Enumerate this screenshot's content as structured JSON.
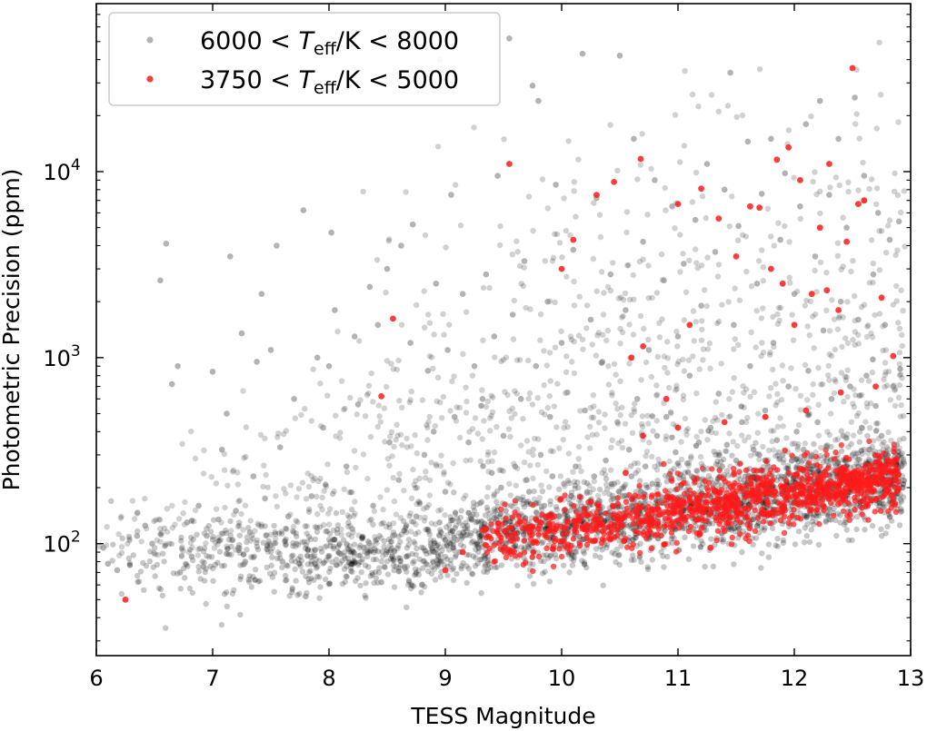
{
  "chart_data": {
    "type": "scatter",
    "title": "",
    "xlabel": "TESS Magnitude",
    "ylabel": "Photometric Precision (ppm)",
    "xlim": [
      6,
      13
    ],
    "ylim": [
      25,
      80000
    ],
    "yscale": "log",
    "grid": false,
    "legend_position": "top-left",
    "x_ticks": [
      {
        "value": 6,
        "label": "6"
      },
      {
        "value": 7,
        "label": "7"
      },
      {
        "value": 8,
        "label": "8"
      },
      {
        "value": 9,
        "label": "9"
      },
      {
        "value": 10,
        "label": "10"
      },
      {
        "value": 11,
        "label": "11"
      },
      {
        "value": 12,
        "label": "12"
      },
      {
        "value": 13,
        "label": "13"
      }
    ],
    "y_ticks": [
      {
        "value": 100,
        "base": "10",
        "exp": "2"
      },
      {
        "value": 1000,
        "base": "10",
        "exp": "3"
      },
      {
        "value": 10000,
        "base": "10",
        "exp": "4"
      }
    ],
    "series": [
      {
        "name": "6000 < T_eff/K < 8000",
        "legend_parts": {
          "pre": "6000 < ",
          "t": "T",
          "sub": "eff",
          "post": "/K < 8000"
        },
        "color": "#808080",
        "points": [
          [
            6.06,
            95
          ],
          [
            6.1,
            78
          ],
          [
            6.18,
            72
          ],
          [
            6.35,
            110
          ],
          [
            6.42,
            125
          ],
          [
            6.48,
            100
          ],
          [
            6.55,
            2600
          ],
          [
            6.6,
            4100
          ],
          [
            6.65,
            720
          ],
          [
            6.7,
            900
          ],
          [
            6.72,
            70
          ],
          [
            6.78,
            130
          ],
          [
            6.82,
            85
          ],
          [
            6.88,
            160
          ],
          [
            6.92,
            75
          ],
          [
            6.95,
            110
          ],
          [
            7.0,
            840
          ],
          [
            7.05,
            135
          ],
          [
            7.08,
            320
          ],
          [
            7.12,
            500
          ],
          [
            7.15,
            3500
          ],
          [
            7.2,
            150
          ],
          [
            7.22,
            95
          ],
          [
            7.25,
            1350
          ],
          [
            7.28,
            80
          ],
          [
            7.32,
            115
          ],
          [
            7.35,
            230
          ],
          [
            7.38,
            950
          ],
          [
            7.42,
            2200
          ],
          [
            7.45,
            175
          ],
          [
            7.5,
            1100
          ],
          [
            7.55,
            4000
          ],
          [
            7.58,
            330
          ],
          [
            7.6,
            80
          ],
          [
            7.65,
            140
          ],
          [
            7.7,
            600
          ],
          [
            7.72,
            100
          ],
          [
            7.78,
            6200
          ],
          [
            7.8,
            52
          ],
          [
            7.85,
            180
          ],
          [
            7.9,
            1000
          ],
          [
            7.95,
            420
          ],
          [
            8.0,
            900
          ],
          [
            8.02,
            4700
          ],
          [
            8.05,
            1800
          ],
          [
            8.1,
            88
          ],
          [
            8.15,
            260
          ],
          [
            8.2,
            120
          ],
          [
            8.22,
            1300
          ],
          [
            8.25,
            560
          ],
          [
            8.3,
            95
          ],
          [
            8.35,
            2400
          ],
          [
            8.38,
            160
          ],
          [
            8.42,
            1500
          ],
          [
            8.45,
            62
          ],
          [
            8.5,
            3000
          ],
          [
            8.52,
            350
          ],
          [
            8.55,
            110
          ],
          [
            8.6,
            220
          ],
          [
            8.62,
            4000
          ],
          [
            8.65,
            75
          ],
          [
            8.7,
            1200
          ],
          [
            8.72,
            5200
          ],
          [
            8.75,
            140
          ],
          [
            8.8,
            60
          ],
          [
            8.82,
            300
          ],
          [
            8.85,
            850
          ],
          [
            8.9,
            400
          ],
          [
            8.92,
            2500
          ],
          [
            8.95,
            130
          ],
          [
            9.0,
            190
          ],
          [
            9.02,
            1100
          ],
          [
            9.05,
            7500
          ],
          [
            9.08,
            480
          ],
          [
            9.1,
            105
          ],
          [
            9.12,
            90
          ],
          [
            9.15,
            2200
          ],
          [
            9.2,
            350
          ],
          [
            9.22,
            140
          ],
          [
            9.25,
            900
          ],
          [
            9.3,
            165
          ],
          [
            9.32,
            600
          ],
          [
            9.35,
            2800
          ],
          [
            9.38,
            120
          ],
          [
            9.4,
            240
          ],
          [
            9.42,
            1300
          ],
          [
            9.45,
            9500
          ],
          [
            9.48,
            200
          ],
          [
            9.5,
            380
          ],
          [
            9.52,
            150
          ],
          [
            9.55,
            52000
          ],
          [
            9.58,
            1700
          ],
          [
            9.6,
            260
          ],
          [
            9.62,
            175
          ],
          [
            9.65,
            600
          ],
          [
            9.68,
            3300
          ],
          [
            9.7,
            220
          ],
          [
            9.72,
            190
          ],
          [
            9.75,
            29000
          ],
          [
            9.78,
            900
          ],
          [
            9.8,
            24000
          ],
          [
            9.82,
            300
          ],
          [
            9.85,
            160
          ],
          [
            9.88,
            2000
          ],
          [
            9.9,
            480
          ],
          [
            9.92,
            230
          ],
          [
            9.95,
            8500
          ],
          [
            9.98,
            140
          ],
          [
            10.0,
            1200
          ],
          [
            10.02,
            210
          ],
          [
            10.05,
            650
          ],
          [
            10.08,
            180
          ],
          [
            10.1,
            3800
          ],
          [
            10.12,
            260
          ],
          [
            10.15,
            150
          ],
          [
            10.18,
            43000
          ],
          [
            10.2,
            520
          ],
          [
            10.22,
            190
          ],
          [
            10.25,
            1600
          ],
          [
            10.28,
            230
          ],
          [
            10.3,
            7200
          ],
          [
            10.32,
            170
          ],
          [
            10.35,
            950
          ],
          [
            10.38,
            280
          ],
          [
            10.4,
            140
          ],
          [
            10.42,
            2800
          ],
          [
            10.45,
            210
          ],
          [
            10.48,
            450
          ],
          [
            10.5,
            42000
          ],
          [
            10.52,
            180
          ],
          [
            10.55,
            1800
          ],
          [
            10.58,
            320
          ],
          [
            10.6,
            230
          ],
          [
            10.62,
            15000
          ],
          [
            10.65,
            600
          ],
          [
            10.68,
            190
          ],
          [
            10.7,
            4200
          ],
          [
            10.72,
            260
          ],
          [
            10.75,
            1100
          ],
          [
            10.78,
            210
          ],
          [
            10.8,
            9000
          ],
          [
            10.82,
            380
          ],
          [
            10.85,
            170
          ],
          [
            10.88,
            2600
          ],
          [
            10.9,
            480
          ],
          [
            10.92,
            230
          ],
          [
            10.95,
            6500
          ],
          [
            10.98,
            310
          ],
          [
            11.0,
            1300
          ],
          [
            11.02,
            200
          ],
          [
            11.05,
            3200
          ],
          [
            11.08,
            270
          ],
          [
            11.1,
            800
          ],
          [
            11.12,
            230
          ],
          [
            11.15,
            5500
          ],
          [
            11.18,
            350
          ],
          [
            11.2,
            1900
          ],
          [
            11.22,
            250
          ],
          [
            11.25,
            11000
          ],
          [
            11.28,
            420
          ],
          [
            11.3,
            210
          ],
          [
            11.32,
            3700
          ],
          [
            11.35,
            640
          ],
          [
            11.38,
            260
          ],
          [
            11.4,
            8000
          ],
          [
            11.42,
            340
          ],
          [
            11.45,
            34000
          ],
          [
            11.48,
            1500
          ],
          [
            11.5,
            280
          ],
          [
            11.52,
            5100
          ],
          [
            11.55,
            450
          ],
          [
            11.58,
            230
          ],
          [
            11.6,
            14500
          ],
          [
            11.62,
            900
          ],
          [
            11.65,
            320
          ],
          [
            11.68,
            2500
          ],
          [
            11.7,
            300
          ],
          [
            11.72,
            7600
          ],
          [
            11.75,
            520
          ],
          [
            11.78,
            260
          ],
          [
            11.8,
            15000
          ],
          [
            11.82,
            1200
          ],
          [
            11.85,
            360
          ],
          [
            11.88,
            4300
          ],
          [
            11.9,
            300
          ],
          [
            11.92,
            9800
          ],
          [
            11.95,
            700
          ],
          [
            11.98,
            280
          ],
          [
            12.0,
            2200
          ],
          [
            12.02,
            400
          ],
          [
            12.05,
            6500
          ],
          [
            12.08,
            320
          ],
          [
            12.1,
            18000
          ],
          [
            12.12,
            850
          ],
          [
            12.15,
            300
          ],
          [
            12.18,
            3500
          ],
          [
            12.2,
            450
          ],
          [
            12.22,
            24000
          ],
          [
            12.25,
            1400
          ],
          [
            12.28,
            330
          ],
          [
            12.3,
            7500
          ],
          [
            12.32,
            600
          ],
          [
            12.35,
            270
          ],
          [
            12.38,
            15000
          ],
          [
            12.4,
            2000
          ],
          [
            12.42,
            380
          ],
          [
            12.45,
            5000
          ],
          [
            12.48,
            700
          ],
          [
            12.5,
            300
          ],
          [
            12.52,
            25000
          ],
          [
            12.55,
            1600
          ],
          [
            12.58,
            420
          ],
          [
            12.6,
            9500
          ],
          [
            12.62,
            800
          ],
          [
            12.65,
            320
          ],
          [
            12.68,
            2800
          ],
          [
            12.7,
            550
          ],
          [
            12.72,
            6000
          ],
          [
            12.75,
            380
          ],
          [
            12.78,
            1500
          ],
          [
            12.8,
            300
          ],
          [
            12.82,
            4300
          ],
          [
            12.85,
            700
          ],
          [
            12.88,
            340
          ],
          [
            12.9,
            5400
          ],
          [
            12.92,
            260
          ]
        ]
      },
      {
        "name": "3750 < T_eff/K < 5000",
        "legend_parts": {
          "pre": "3750 < ",
          "t": "T",
          "sub": "eff",
          "post": "/K < 5000"
        },
        "color": "#ff1a1a",
        "points": [
          [
            6.25,
            50
          ],
          [
            8.45,
            620
          ],
          [
            8.55,
            1620
          ],
          [
            9.0,
            72
          ],
          [
            9.15,
            90
          ],
          [
            9.35,
            120
          ],
          [
            9.55,
            11000
          ],
          [
            9.8,
            120
          ],
          [
            10.0,
            3000
          ],
          [
            10.1,
            4300
          ],
          [
            10.3,
            7500
          ],
          [
            10.45,
            8800
          ],
          [
            10.6,
            1000
          ],
          [
            10.68,
            11700
          ],
          [
            10.7,
            1150
          ],
          [
            10.9,
            600
          ],
          [
            11.0,
            6700
          ],
          [
            11.1,
            1500
          ],
          [
            11.2,
            8100
          ],
          [
            11.28,
            95
          ],
          [
            11.35,
            5600
          ],
          [
            11.5,
            3500
          ],
          [
            11.62,
            6500
          ],
          [
            11.7,
            6400
          ],
          [
            11.8,
            3000
          ],
          [
            11.85,
            11600
          ],
          [
            11.9,
            2500
          ],
          [
            11.95,
            13500
          ],
          [
            12.0,
            1500
          ],
          [
            12.05,
            9000
          ],
          [
            12.15,
            2200
          ],
          [
            12.22,
            5000
          ],
          [
            12.28,
            2300
          ],
          [
            12.3,
            11000
          ],
          [
            12.38,
            1800
          ],
          [
            12.45,
            4200
          ],
          [
            12.5,
            36000
          ],
          [
            12.55,
            6700
          ],
          [
            12.6,
            7000
          ],
          [
            12.75,
            2100
          ],
          [
            12.85,
            1020
          ],
          [
            12.7,
            700
          ],
          [
            12.4,
            650
          ],
          [
            12.1,
            520
          ],
          [
            11.75,
            480
          ],
          [
            11.4,
            450
          ],
          [
            11.0,
            420
          ],
          [
            10.7,
            380
          ],
          [
            10.55,
            240
          ],
          [
            9.95,
            120
          ]
        ]
      }
    ]
  }
}
